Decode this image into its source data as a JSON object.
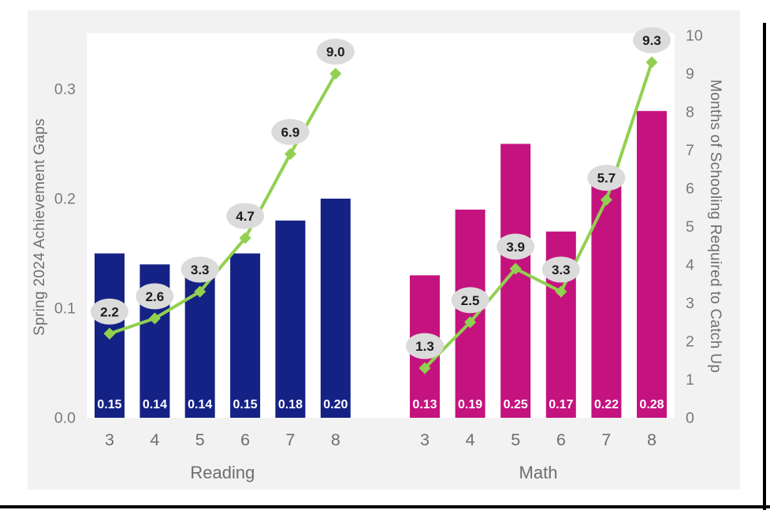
{
  "chart_data": {
    "type": "bar",
    "overlay_type": "line",
    "title": "",
    "grid": false,
    "legend": "none",
    "left_axis": {
      "title": "Spring 2024 Achievement Gaps",
      "tick_labels": [
        "0.0",
        "0.1",
        "0.2",
        "0.3"
      ],
      "tick_values": [
        0.0,
        0.1,
        0.2,
        0.3
      ],
      "range": [
        0,
        0.35
      ]
    },
    "right_axis": {
      "title": "Months of Schooling Required to Catch Up",
      "tick_labels": [
        "0",
        "1",
        "2",
        "3",
        "4",
        "5",
        "6",
        "7",
        "8",
        "9",
        "10"
      ],
      "tick_values": [
        0,
        1,
        2,
        3,
        4,
        5,
        6,
        7,
        8,
        9,
        10
      ],
      "range": [
        0,
        10
      ]
    },
    "groups": [
      {
        "label": "Reading",
        "bar_color": "#152285",
        "categories": [
          "3",
          "4",
          "5",
          "6",
          "7",
          "8"
        ],
        "bars": {
          "axis": "left",
          "values": [
            0.15,
            0.14,
            0.14,
            0.15,
            0.18,
            0.2
          ],
          "labels": [
            "0.15",
            "0.14",
            "0.14",
            "0.15",
            "0.18",
            "0.20"
          ]
        },
        "line": {
          "axis": "right",
          "values": [
            2.2,
            2.6,
            3.3,
            4.7,
            6.9,
            9.0
          ],
          "labels": [
            "2.2",
            "2.6",
            "3.3",
            "4.7",
            "6.9",
            "9.0"
          ]
        }
      },
      {
        "label": "Math",
        "bar_color": "#c4137e",
        "categories": [
          "3",
          "4",
          "5",
          "6",
          "7",
          "8"
        ],
        "bars": {
          "axis": "left",
          "values": [
            0.13,
            0.19,
            0.25,
            0.17,
            0.22,
            0.28
          ],
          "labels": [
            "0.13",
            "0.19",
            "0.25",
            "0.17",
            "0.22",
            "0.28"
          ]
        },
        "line": {
          "axis": "right",
          "values": [
            1.3,
            2.5,
            3.9,
            3.3,
            5.7,
            9.3
          ],
          "labels": [
            "1.3",
            "2.5",
            "3.9",
            "3.3",
            "5.7",
            "9.3"
          ]
        }
      }
    ],
    "colors": {
      "line": "#92d050",
      "marker": "#92d050",
      "bubble_fill": "#dbdbdb",
      "bubble_text": "#1c1c1c",
      "bar_label_text": "#ffffff",
      "axis_text": "#7a7a7a",
      "category_text": "#6e6e6e",
      "panel_background": "#f2f2f2",
      "plot_background": "#ffffff"
    }
  }
}
